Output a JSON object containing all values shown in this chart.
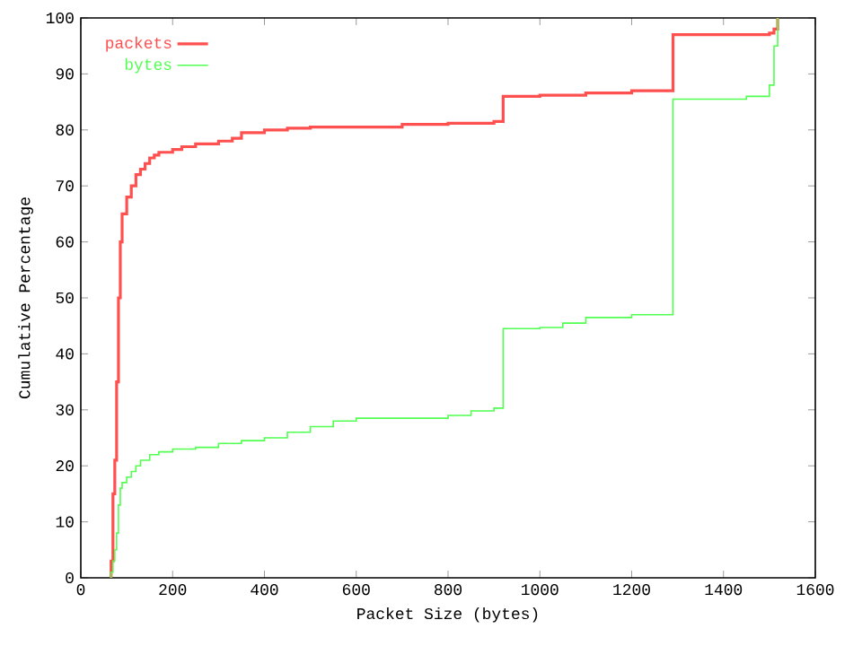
{
  "chart_data": {
    "type": "step",
    "xlabel": "Packet Size (bytes)",
    "ylabel": "Cumulative Percentage",
    "xlim": [
      0,
      1600
    ],
    "xticks": [
      0,
      200,
      400,
      600,
      800,
      1000,
      1200,
      1400,
      1600
    ],
    "ylim": [
      0,
      100
    ],
    "yticks": [
      0,
      10,
      20,
      30,
      40,
      50,
      60,
      70,
      80,
      90,
      100
    ],
    "grid": false,
    "legend": "top left",
    "series": [
      {
        "name": "packets",
        "color": "#ff5050",
        "x": [
          64,
          66,
          70,
          74,
          78,
          82,
          86,
          90,
          100,
          110,
          120,
          130,
          140,
          150,
          160,
          170,
          180,
          200,
          220,
          250,
          300,
          330,
          350,
          400,
          450,
          500,
          550,
          600,
          700,
          800,
          900,
          920,
          1000,
          1100,
          1200,
          1290,
          1300,
          1500,
          1510,
          1518
        ],
        "values": [
          0,
          3,
          15,
          21,
          35,
          50,
          60,
          65,
          68,
          70,
          72,
          73,
          74,
          75,
          75.5,
          76,
          76,
          76.5,
          77,
          77.5,
          78,
          78.5,
          79.5,
          80,
          80.3,
          80.5,
          80.5,
          80.5,
          81,
          81.2,
          81.5,
          86,
          86.2,
          86.6,
          87,
          97,
          97,
          97.3,
          98,
          100
        ]
      },
      {
        "name": "bytes",
        "color": "#50ff50",
        "x": [
          64,
          66,
          70,
          74,
          78,
          82,
          86,
          90,
          100,
          110,
          120,
          130,
          150,
          170,
          200,
          250,
          300,
          350,
          400,
          450,
          500,
          550,
          600,
          700,
          800,
          850,
          900,
          920,
          1000,
          1050,
          1100,
          1200,
          1290,
          1450,
          1500,
          1510,
          1518
        ],
        "values": [
          0,
          1,
          3,
          5,
          8,
          13,
          16,
          17,
          18,
          19,
          20,
          21,
          22,
          22.5,
          23,
          23.3,
          24,
          24.5,
          25,
          26,
          27,
          28,
          28.5,
          28.5,
          29,
          29.8,
          30.3,
          44.5,
          44.7,
          45.5,
          46.5,
          47,
          85.5,
          86,
          88,
          95,
          100
        ]
      }
    ]
  }
}
